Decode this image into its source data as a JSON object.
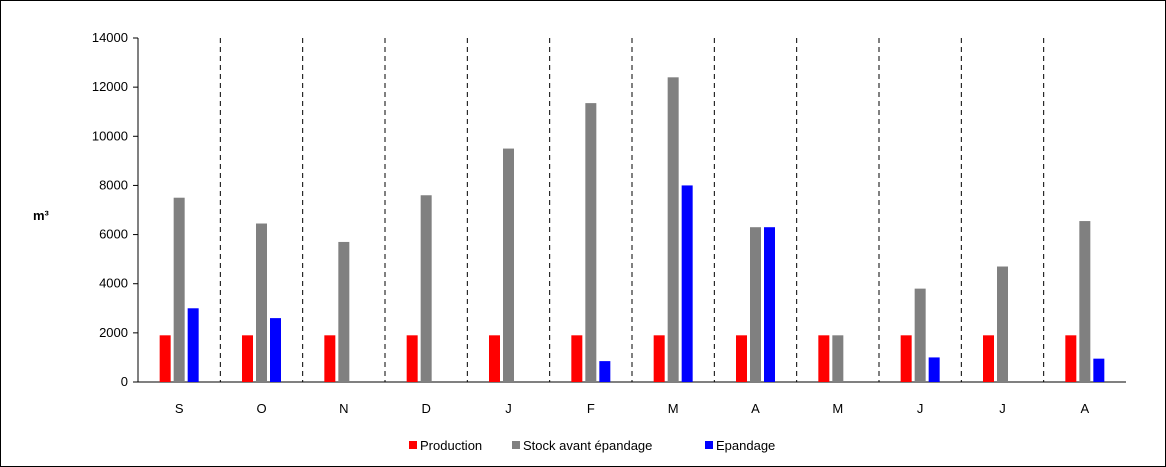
{
  "chart_data": {
    "type": "bar",
    "title": "",
    "xlabel": "",
    "ylabel": "m³",
    "ylim": [
      0,
      14000
    ],
    "yticks": [
      0,
      2000,
      4000,
      6000,
      8000,
      10000,
      12000,
      14000
    ],
    "categories": [
      "S",
      "O",
      "N",
      "D",
      "J",
      "F",
      "M",
      "A",
      "M",
      "J",
      "J",
      "A"
    ],
    "series": [
      {
        "name": "Production",
        "color": "#ff0000",
        "values": [
          1900,
          1900,
          1900,
          1900,
          1900,
          1900,
          1900,
          1900,
          1900,
          1900,
          1900,
          1900
        ]
      },
      {
        "name": "Stock avant épandage",
        "color": "#808080",
        "values": [
          7500,
          6450,
          5700,
          7600,
          9500,
          11350,
          12400,
          6300,
          1900,
          3800,
          4700,
          6550
        ]
      },
      {
        "name": "Epandage",
        "color": "#0000ff",
        "values": [
          3000,
          2600,
          0,
          0,
          0,
          850,
          8000,
          6300,
          0,
          1000,
          0,
          950
        ]
      }
    ],
    "grid": false,
    "category_separators": "dashed",
    "legend": "bottom-center"
  }
}
